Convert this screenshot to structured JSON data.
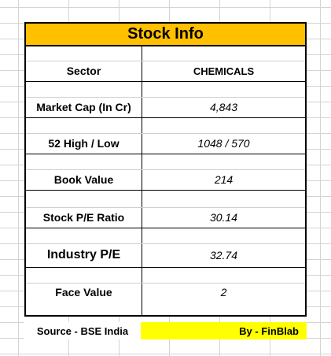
{
  "title": "Stock Info",
  "rows": [
    {
      "label": "Sector",
      "value": "CHEMICALS"
    },
    {
      "label": "Market Cap (In Cr)",
      "value": "4,843"
    },
    {
      "label": "52 High / Low",
      "value": "1048 / 570"
    },
    {
      "label": "Book Value",
      "value": "214"
    },
    {
      "label": "Stock P/E Ratio",
      "value": "30.14"
    },
    {
      "label": "Industry P/E",
      "value": "32.74"
    },
    {
      "label": "Face Value",
      "value": "2"
    }
  ],
  "footer": {
    "source": "Source - BSE India",
    "by": "By - FinBlab"
  },
  "colors": {
    "title_bg": "#ffc000",
    "footer_highlight": "#ffff00"
  }
}
